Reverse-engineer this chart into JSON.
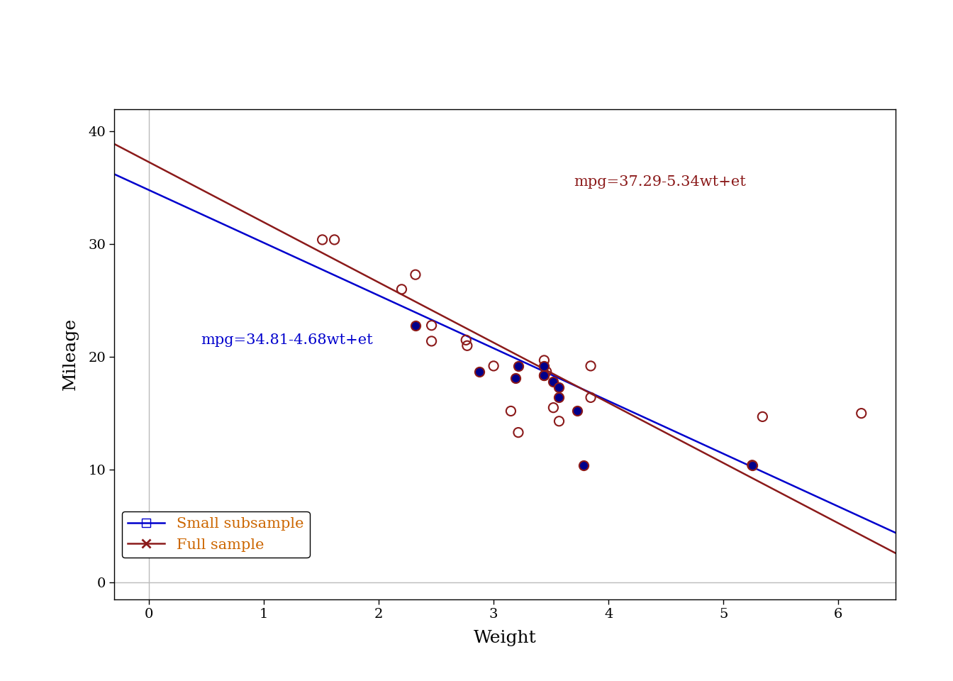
{
  "title": "",
  "xlabel": "Weight",
  "ylabel": "Mileage",
  "xlim": [
    -0.3,
    6.5
  ],
  "ylim": [
    -1.5,
    42
  ],
  "xticks": [
    0,
    1,
    2,
    3,
    4,
    5,
    6
  ],
  "yticks": [
    0,
    10,
    20,
    30,
    40
  ],
  "blue_line_color": "#0000CD",
  "red_line_color": "#8B1A1A",
  "blue_intercept": 34.81,
  "blue_slope": -4.68,
  "red_intercept": 37.29,
  "red_slope": -5.34,
  "blue_eq": "mpg=34.81-4.68wt+et",
  "red_eq": "mpg=37.29-5.34wt+et",
  "blue_eq_x": 0.45,
  "blue_eq_y": 21.5,
  "red_eq_x": 3.7,
  "red_eq_y": 35.5,
  "open_circles_x": [
    1.51,
    1.615,
    2.2,
    2.32,
    2.46,
    2.46,
    2.76,
    2.77,
    3.0,
    3.15,
    3.215,
    3.44,
    3.46,
    3.52,
    3.57,
    3.845,
    3.845,
    5.25,
    5.34,
    6.2
  ],
  "open_circles_y": [
    30.4,
    30.4,
    26.0,
    27.3,
    22.8,
    21.4,
    21.5,
    21.0,
    19.2,
    15.2,
    13.3,
    19.7,
    18.7,
    15.5,
    14.3,
    16.4,
    19.2,
    10.4,
    14.7,
    15.0
  ],
  "filled_circles_x": [
    2.32,
    2.875,
    3.19,
    3.215,
    3.44,
    3.44,
    3.44,
    3.52,
    3.57,
    3.57,
    3.73,
    3.78,
    5.25
  ],
  "filled_circles_y": [
    22.8,
    18.7,
    18.1,
    19.2,
    18.4,
    18.4,
    19.2,
    17.8,
    16.4,
    17.3,
    15.2,
    10.4,
    10.4
  ],
  "open_circle_color": "#8B1A1A",
  "filled_circle_facecolor": "#00008B",
  "filled_circle_edgecolor": "#8B1A1A",
  "vline_x": 0.0,
  "vline_color": "#BBBBBB",
  "hline_y": 0.0,
  "hline_color": "#BBBBBB",
  "background_color": "#FFFFFF",
  "plot_area_color": "#FFFFFF",
  "legend_labels": [
    "Small subsample",
    "Full sample"
  ],
  "legend_line_colors": [
    "#0000CD",
    "#8B1A1A"
  ],
  "legend_text_color": "#CC6600",
  "fontsize_axis_label": 18,
  "fontsize_tick": 14,
  "fontsize_eq": 15,
  "fontsize_legend": 15,
  "marker_size": 90,
  "marker_linewidth": 1.5
}
